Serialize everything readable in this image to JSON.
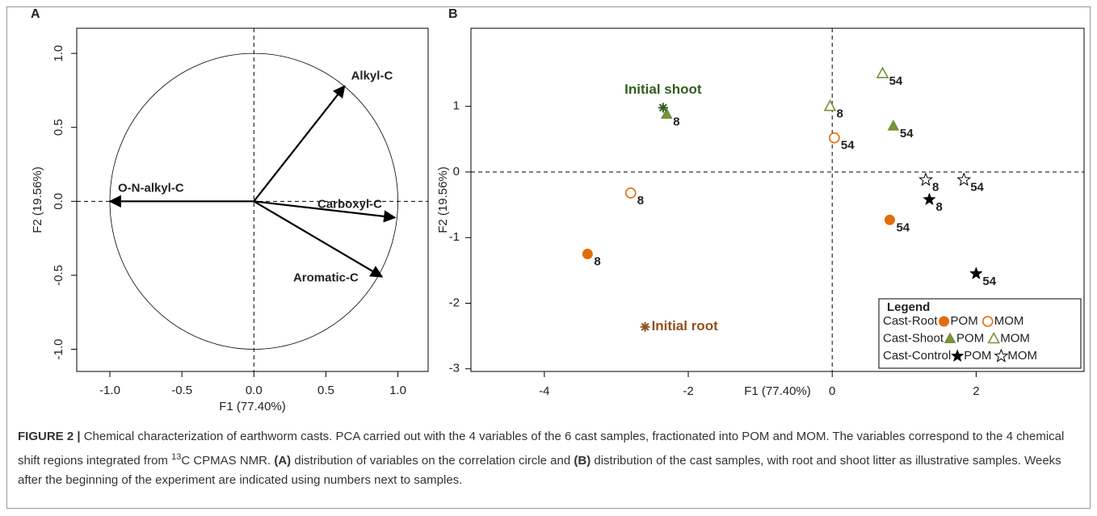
{
  "chart_data": [
    {
      "type": "biplot",
      "panel_label": "A",
      "xlabel": "F1 (77.40%)",
      "ylabel": "F2 (19.56%)",
      "xlim": [
        -1.23,
        1.21
      ],
      "ylim": [
        -1.15,
        1.17
      ],
      "xticks": [
        {
          "value": -1,
          "label": "-1.0"
        },
        {
          "value": -0.5,
          "label": "-0.5"
        },
        {
          "value": 0,
          "label": "0.0"
        },
        {
          "value": 0.5,
          "label": "0.5"
        },
        {
          "value": 1,
          "label": "1.0"
        }
      ],
      "yticks": [
        {
          "value": -1,
          "label": "-1.0"
        },
        {
          "value": -0.5,
          "label": "-0.5"
        },
        {
          "value": 0,
          "label": "0.0"
        },
        {
          "value": 0.5,
          "label": "0.5"
        },
        {
          "value": 1,
          "label": "1.0"
        }
      ],
      "vectors": [
        {
          "name": "Alkyl-C",
          "x": 0.63,
          "y": 0.78
        },
        {
          "name": "O-N-alkyl-C",
          "x": -1.0,
          "y": 0.0
        },
        {
          "name": "Carboxyl-C",
          "x": 0.98,
          "y": -0.11
        },
        {
          "name": "Aromatic-C",
          "x": 0.89,
          "y": -0.51
        }
      ],
      "color": "#000000"
    },
    {
      "type": "scatter",
      "panel_label": "B",
      "xlabel": "F1 (77.40%)",
      "ylabel": "F2 (19.56%)",
      "xlim": [
        -5.02,
        3.5
      ],
      "ylim": [
        -3.04,
        2.19
      ],
      "xticks": [
        -4,
        -2,
        0,
        2
      ],
      "yticks": [
        -3,
        -2,
        -1,
        0,
        1
      ],
      "legend": {
        "title": "Legend",
        "position": "lower-right"
      },
      "series": [
        {
          "name": "Cast-Root",
          "color": "#e36c0a",
          "marker": "circle",
          "fractions": [
            {
              "name": "POM",
              "filled": true,
              "x": [
                -3.4,
                0.8
              ],
              "y": [
                -1.25,
                -0.73
              ],
              "weeks": [
                8,
                54
              ]
            },
            {
              "name": "MOM",
              "filled": false,
              "x": [
                -2.8,
                0.03
              ],
              "y": [
                -0.32,
                0.52
              ],
              "weeks": [
                8,
                54
              ]
            }
          ]
        },
        {
          "name": "Cast-Shoot",
          "color": "#77933c",
          "marker": "triangle",
          "fractions": [
            {
              "name": "POM",
              "filled": true,
              "x": [
                -2.3,
                0.85
              ],
              "y": [
                0.88,
                0.7
              ],
              "weeks": [
                8,
                54
              ]
            },
            {
              "name": "MOM",
              "filled": false,
              "x": [
                -0.03,
                0.7
              ],
              "y": [
                1.0,
                1.5
              ],
              "weeks": [
                8,
                54
              ]
            }
          ]
        },
        {
          "name": "Cast-Control",
          "color": "#000000",
          "marker": "star",
          "fractions": [
            {
              "name": "POM",
              "filled": true,
              "x": [
                1.35,
                2.0
              ],
              "y": [
                -0.42,
                -1.55
              ],
              "weeks": [
                8,
                54
              ]
            },
            {
              "name": "MOM",
              "filled": false,
              "x": [
                1.3,
                1.83
              ],
              "y": [
                -0.12,
                -0.12
              ],
              "weeks": [
                8,
                54
              ]
            }
          ]
        }
      ],
      "annotations": [
        {
          "text": "Initial shoot",
          "x": -2.35,
          "y": 0.98,
          "color": "#2f5f1f"
        },
        {
          "text": "Initial root",
          "x": -2.6,
          "y": -2.36,
          "color": "#94501c"
        }
      ]
    }
  ],
  "caption": [
    {
      "text": "FIGURE 2 |",
      "bold": true
    },
    {
      "text": " Chemical characterization of earthworm casts. PCA carried out with the 4 variables of the 6 cast samples, fractionated into POM and MOM. The variables correspond to the 4 chemical shift regions integrated from "
    },
    {
      "text": "13",
      "sup": true
    },
    {
      "text": "C CPMAS NMR. "
    },
    {
      "text": "(A)",
      "bold": true
    },
    {
      "text": " distribution of variables on the correlation circle and "
    },
    {
      "text": "(B)",
      "bold": true
    },
    {
      "text": " distribution of the cast samples, with root and shoot litter as illustrative samples. Weeks after the beginning of the experiment are indicated using numbers next to samples."
    }
  ]
}
